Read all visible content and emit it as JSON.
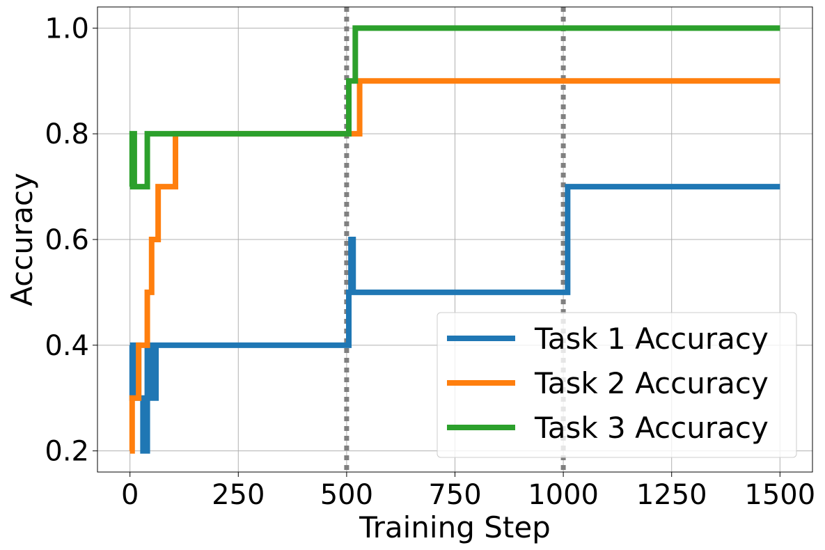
{
  "chart_data": {
    "type": "line",
    "xlabel": "Training Step",
    "ylabel": "Accuracy",
    "xlim": [
      -75,
      1575
    ],
    "ylim": [
      0.16,
      1.04
    ],
    "xticks": [
      0,
      250,
      500,
      750,
      1000,
      1250,
      1500
    ],
    "xtick_labels": [
      "0",
      "250",
      "500",
      "750",
      "1000",
      "1250",
      "1500"
    ],
    "yticks": [
      0.2,
      0.4,
      0.6,
      0.8,
      1.0
    ],
    "ytick_labels": [
      "0.2",
      "0.4",
      "0.6",
      "0.8",
      "1.0"
    ],
    "grid": true,
    "legend_position": "lower-right",
    "task_boundaries": [
      500,
      1000
    ],
    "task_boundary_color": "#808080",
    "series": [
      {
        "name": "Task 1 Accuracy",
        "color": "#1f77b4",
        "step": true,
        "x": [
          0,
          5,
          10,
          15,
          20,
          25,
          30,
          35,
          40,
          45,
          50,
          55,
          60,
          500,
          505,
          510,
          515,
          1000,
          1005,
          1010,
          1500
        ],
        "y": [
          0.4,
          0.3,
          0.3,
          0.4,
          0.3,
          0.3,
          0.2,
          0.2,
          0.4,
          0.3,
          0.4,
          0.3,
          0.4,
          0.4,
          0.5,
          0.6,
          0.5,
          0.5,
          0.5,
          0.7,
          0.7
        ]
      },
      {
        "name": "Task 2 Accuracy",
        "color": "#ff7f0e",
        "step": true,
        "x": [
          0,
          5,
          20,
          40,
          45,
          50,
          55,
          60,
          65,
          100,
          105,
          500,
          505,
          510,
          520,
          530,
          1500
        ],
        "y": [
          0.2,
          0.3,
          0.4,
          0.5,
          0.5,
          0.6,
          0.6,
          0.6,
          0.7,
          0.7,
          0.8,
          0.8,
          0.8,
          0.8,
          0.8,
          0.9,
          0.9
        ],
        "z": 2
      },
      {
        "name": "Task 3 Accuracy",
        "color": "#2ca02c",
        "step": true,
        "x": [
          0,
          5,
          10,
          35,
          40,
          500,
          505,
          510,
          520,
          1500
        ],
        "y": [
          0.7,
          0.8,
          0.7,
          0.7,
          0.8,
          0.8,
          0.9,
          0.9,
          1.0,
          1.0
        ]
      }
    ]
  }
}
